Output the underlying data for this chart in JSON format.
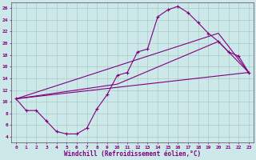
{
  "xlabel": "Windchill (Refroidissement éolien,°C)",
  "bg_color": "#cce8e8",
  "line_color": "#800080",
  "grid_color": "#aacaca",
  "xlim": [
    -0.5,
    23.5
  ],
  "ylim": [
    3.0,
    27.0
  ],
  "xticks": [
    0,
    1,
    2,
    3,
    4,
    5,
    6,
    7,
    8,
    9,
    10,
    11,
    12,
    13,
    14,
    15,
    16,
    17,
    18,
    19,
    20,
    21,
    22,
    23
  ],
  "yticks": [
    4,
    6,
    8,
    10,
    12,
    14,
    16,
    18,
    20,
    22,
    24,
    26
  ],
  "curve_x": [
    0,
    1,
    2,
    3,
    4,
    5,
    6,
    7,
    8,
    9,
    10,
    11,
    12,
    13,
    14,
    15,
    16,
    17,
    18,
    19,
    20,
    21,
    22,
    23
  ],
  "curve_y": [
    10.5,
    8.5,
    8.5,
    6.7,
    4.9,
    4.5,
    4.5,
    5.5,
    8.8,
    11.2,
    14.5,
    15.0,
    18.5,
    19.0,
    24.5,
    25.7,
    26.3,
    25.2,
    23.5,
    21.7,
    20.3,
    18.5,
    17.8,
    15.0
  ],
  "line2_x": [
    0,
    23
  ],
  "line2_y": [
    10.5,
    15.0
  ],
  "line3_x": [
    0,
    10,
    20,
    23
  ],
  "line3_y": [
    10.5,
    13.0,
    20.3,
    15.0
  ],
  "line4_x": [
    0,
    20,
    23
  ],
  "line4_y": [
    10.5,
    21.7,
    15.0
  ],
  "marker": "+",
  "markersize": 3.5,
  "linewidth": 0.8
}
